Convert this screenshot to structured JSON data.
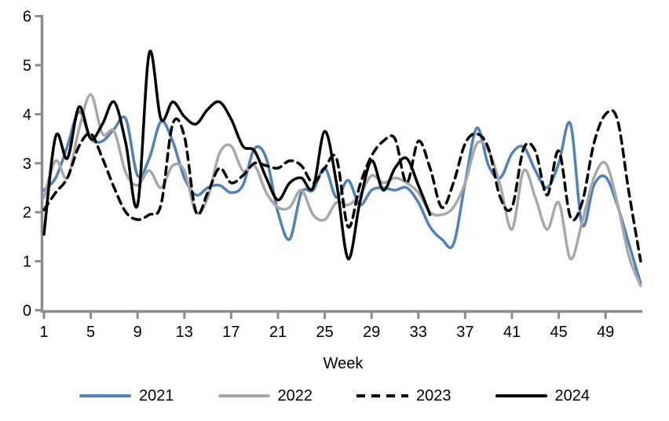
{
  "chart_data": {
    "type": "line",
    "title": "",
    "xlabel": "Week",
    "ylabel": "",
    "xlim": [
      1,
      52
    ],
    "ylim": [
      0,
      6
    ],
    "grid": false,
    "legend_position": "bottom",
    "axis_color": "#8C8C8C",
    "text_color": "#000000",
    "yticks": [
      0,
      1,
      2,
      3,
      4,
      5,
      6
    ],
    "xticks": [
      1,
      5,
      9,
      13,
      17,
      21,
      25,
      29,
      33,
      37,
      41,
      45,
      49
    ],
    "x_unit": "week",
    "series": [
      {
        "name": "2021",
        "color": "#4F81BD",
        "style": "solid",
        "start_week": 1,
        "values": [
          2.45,
          2.7,
          3.35,
          4.05,
          3.5,
          3.45,
          3.7,
          3.9,
          2.75,
          3.1,
          3.85,
          3.45,
          2.7,
          2.35,
          2.5,
          2.55,
          2.4,
          2.55,
          3.3,
          3.1,
          2.0,
          1.45,
          2.4,
          2.45,
          2.9,
          2.3,
          2.65,
          2.15,
          2.45,
          2.5,
          2.45,
          2.5,
          2.2,
          1.7,
          1.45,
          1.35,
          2.6,
          3.72,
          2.95,
          2.7,
          3.2,
          3.33,
          2.85,
          2.5,
          3.0,
          3.8,
          1.75,
          2.55,
          2.72,
          2.15,
          1.35,
          0.55
        ]
      },
      {
        "name": "2022",
        "color": "#A8A8A8",
        "style": "solid",
        "start_week": 1,
        "values": [
          2.3,
          3.05,
          2.7,
          3.7,
          4.4,
          3.6,
          3.65,
          2.8,
          2.55,
          2.85,
          2.5,
          2.95,
          2.85,
          2.0,
          2.3,
          3.2,
          3.35,
          2.85,
          2.95,
          2.4,
          2.1,
          2.1,
          2.45,
          1.95,
          1.85,
          2.2,
          2.15,
          2.35,
          2.75,
          2.6,
          2.7,
          2.6,
          2.4,
          2.0,
          1.95,
          2.1,
          2.6,
          3.4,
          3.25,
          2.55,
          1.65,
          2.85,
          2.3,
          1.65,
          2.2,
          1.05,
          1.8,
          2.7,
          3.0,
          2.2,
          1.1,
          0.5
        ]
      },
      {
        "name": "2023",
        "color": "#000000",
        "style": "dashed",
        "start_week": 1,
        "values": [
          2.05,
          2.4,
          2.7,
          3.35,
          3.6,
          3.1,
          2.5,
          2.0,
          1.85,
          1.95,
          2.15,
          3.8,
          3.55,
          2.0,
          2.4,
          2.9,
          2.6,
          2.75,
          3.0,
          2.95,
          2.9,
          3.05,
          2.95,
          2.6,
          2.9,
          3.1,
          1.7,
          2.55,
          3.15,
          3.45,
          3.5,
          2.6,
          3.45,
          2.9,
          2.1,
          2.6,
          3.4,
          3.6,
          3.3,
          2.3,
          2.1,
          3.3,
          3.25,
          2.35,
          3.25,
          1.9,
          2.2,
          3.4,
          4.0,
          3.9,
          2.4,
          1.0
        ]
      },
      {
        "name": "2024",
        "color": "#000000",
        "style": "solid",
        "start_week": 1,
        "values": [
          1.55,
          3.55,
          3.1,
          4.15,
          3.5,
          3.8,
          4.25,
          3.4,
          2.15,
          5.25,
          3.9,
          4.25,
          3.95,
          3.8,
          4.1,
          4.25,
          3.9,
          3.35,
          3.25,
          2.7,
          2.25,
          2.6,
          2.7,
          2.5,
          3.65,
          2.6,
          1.05,
          2.2,
          3.05,
          2.45,
          2.9,
          3.1,
          2.55,
          1.95
        ]
      }
    ]
  }
}
